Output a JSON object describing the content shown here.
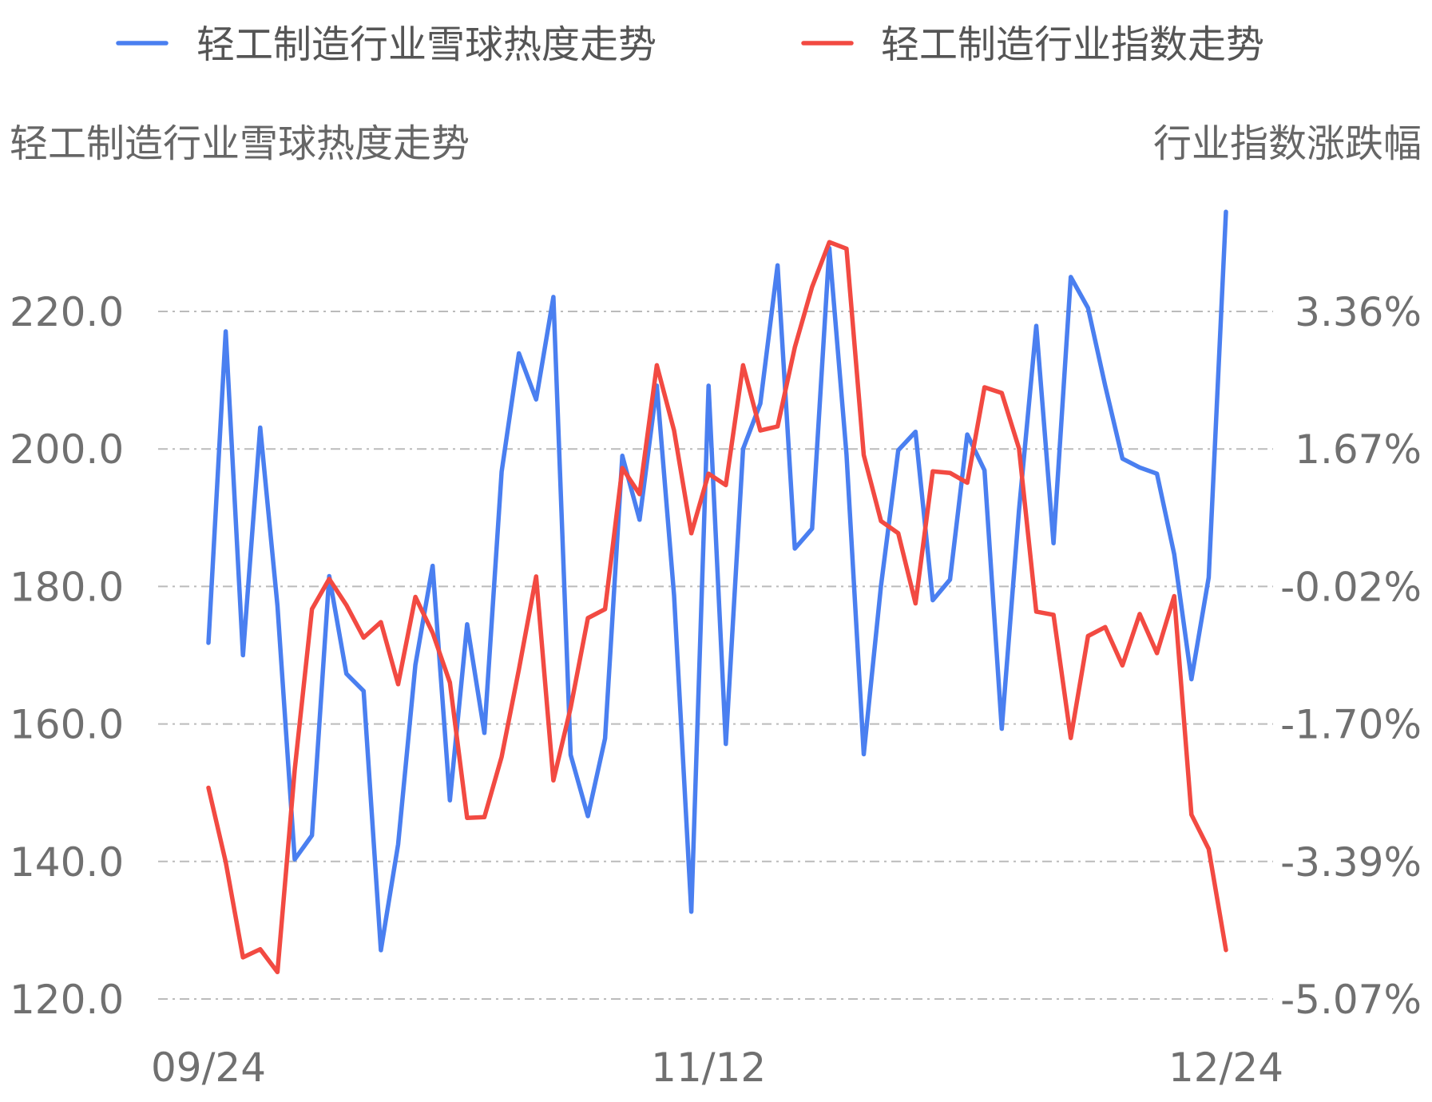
{
  "chart_data": {
    "type": "line",
    "legend": [
      {
        "name": "轻工制造行业雪球热度走势",
        "color": "#4a7ff0"
      },
      {
        "name": "轻工制造行业指数走势",
        "color": "#f24a42"
      }
    ],
    "legend_position": "top",
    "left_axis_title": "轻工制造行业雪球热度走势",
    "right_axis_title": "行业指数涨跌幅",
    "left_ticks": [
      "220.0",
      "200.0",
      "180.0",
      "160.0",
      "140.0",
      "120.0"
    ],
    "right_ticks": [
      "3.36%",
      "1.67%",
      "-0.02%",
      "-1.70%",
      "-3.39%",
      "-5.07%"
    ],
    "x_ticks": [
      {
        "label": "09/24",
        "index": 0
      },
      {
        "label": "11/12",
        "index": 29
      },
      {
        "label": "12/24",
        "index": 59
      }
    ],
    "left_ylim": [
      120.0,
      220.0
    ],
    "right_ylim": [
      -5.07,
      3.36
    ],
    "grid": true,
    "series": [
      {
        "name": "轻工制造行业雪球热度走势",
        "axis": "left",
        "color": "#4a7ff0",
        "values": [
          171.8,
          217.1,
          170.0,
          203.1,
          177.2,
          140.3,
          143.8,
          181.5,
          167.3,
          164.8,
          127.1,
          142.5,
          168.6,
          183.0,
          148.9,
          174.5,
          158.7,
          196.7,
          213.9,
          207.2,
          222.1,
          155.5,
          146.6,
          157.9,
          199.0,
          189.7,
          209.2,
          178.7,
          132.7,
          209.2,
          157.1,
          200.0,
          206.6,
          226.7,
          185.5,
          188.4,
          229.2,
          199.2,
          155.6,
          180.1,
          199.8,
          202.5,
          178.0,
          181.0,
          202.1,
          196.9,
          159.3,
          191.1,
          217.9,
          186.3,
          225.0,
          220.5,
          209.2,
          198.6,
          197.3,
          196.4,
          184.7,
          166.5,
          181.3,
          234.5
        ]
      },
      {
        "name": "轻工制造行业指数走势",
        "axis": "right",
        "color": "#f24a42",
        "values": [
          -2.48,
          -3.39,
          -4.56,
          -4.46,
          -4.74,
          -2.26,
          -0.29,
          0.08,
          -0.24,
          -0.64,
          -0.45,
          -1.21,
          -0.14,
          -0.58,
          -1.19,
          -2.85,
          -2.84,
          -2.1,
          -1.03,
          0.11,
          -2.39,
          -1.5,
          -0.4,
          -0.29,
          1.44,
          1.12,
          2.7,
          1.9,
          0.64,
          1.37,
          1.23,
          2.7,
          1.9,
          1.95,
          2.92,
          3.66,
          4.21,
          4.13,
          1.6,
          0.79,
          0.64,
          -0.22,
          1.4,
          1.38,
          1.26,
          2.43,
          2.36,
          1.68,
          -0.32,
          -0.36,
          -1.87,
          -0.62,
          -0.51,
          -0.98,
          -0.35,
          -0.83,
          -0.13,
          -2.81,
          -3.23,
          -4.47
        ]
      }
    ]
  }
}
